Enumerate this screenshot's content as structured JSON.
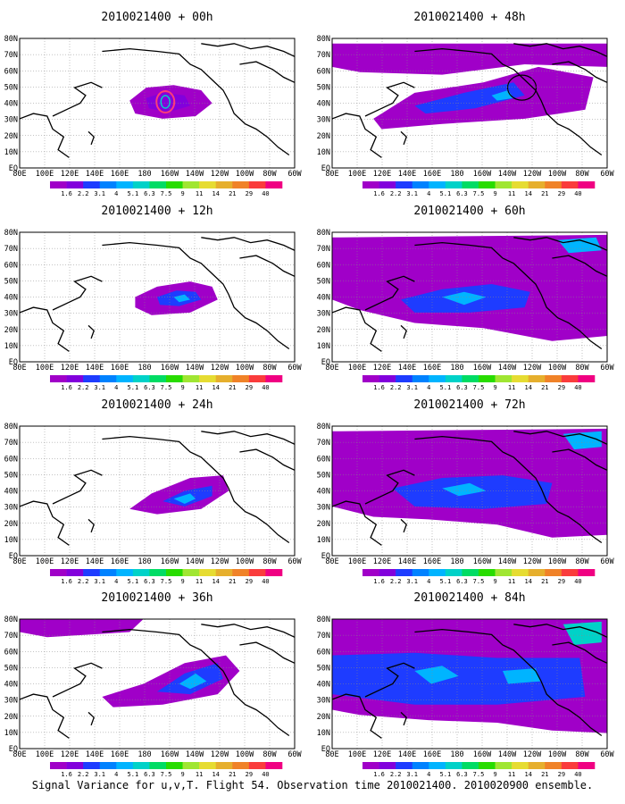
{
  "figure": {
    "caption": "Signal Variance for u,v,T. Flight 54. Observation time 2010021400. 2010020900 ensemble."
  },
  "panels": [
    {
      "title": "2010021400 + 00h",
      "lead_hours": 0
    },
    {
      "title": "2010021400 + 48h",
      "lead_hours": 48
    },
    {
      "title": "2010021400 + 12h",
      "lead_hours": 12
    },
    {
      "title": "2010021400 + 60h",
      "lead_hours": 60
    },
    {
      "title": "2010021400 + 24h",
      "lead_hours": 24
    },
    {
      "title": "2010021400 + 72h",
      "lead_hours": 72
    },
    {
      "title": "2010021400 + 36h",
      "lead_hours": 36
    },
    {
      "title": "2010021400 + 84h",
      "lead_hours": 84
    }
  ],
  "map": {
    "lon_labels": [
      "80E",
      "100E",
      "120E",
      "140E",
      "160E",
      "180",
      "160W",
      "140W",
      "120W",
      "100W",
      "80W",
      "60W"
    ],
    "lat_labels": [
      "EQ",
      "10N",
      "20N",
      "30N",
      "40N",
      "50N",
      "60N",
      "70N",
      "80N"
    ],
    "lon_range": [
      80,
      300
    ],
    "lat_range": [
      0,
      80
    ]
  },
  "colorbar": {
    "labels": [
      "1.6",
      "2.2",
      "3.1",
      "4",
      "5.1",
      "6.3",
      "7.5",
      "9",
      "11",
      "14",
      "21",
      "29",
      "40"
    ],
    "colors": [
      "#a000c8",
      "#8200dc",
      "#1e3cff",
      "#0082ff",
      "#00b4ff",
      "#00d2c8",
      "#00dc64",
      "#28dc00",
      "#a0e632",
      "#e6dc32",
      "#e6af2d",
      "#f08228",
      "#fa3c3c",
      "#f00082"
    ]
  }
}
